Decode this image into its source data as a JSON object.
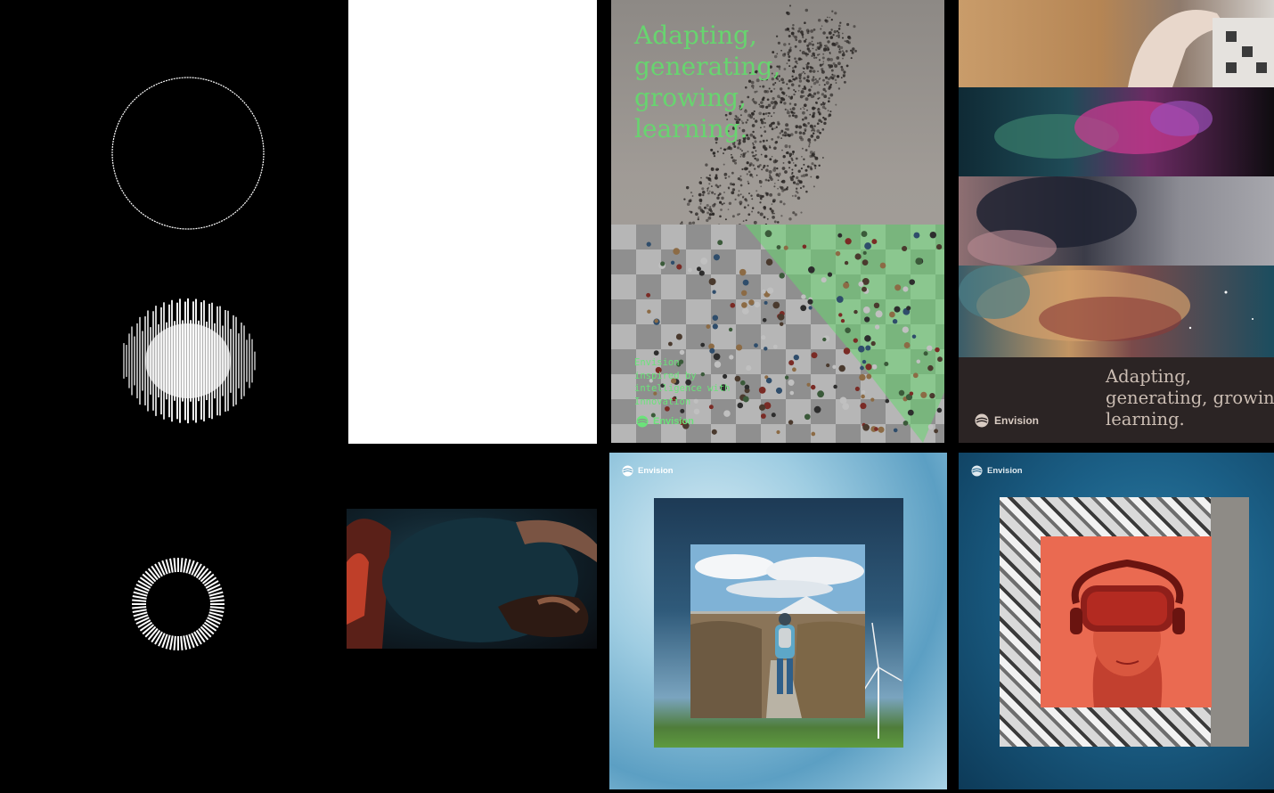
{
  "brand": {
    "name": "Envision"
  },
  "poster": {
    "headline_lines": [
      "Adapting,",
      "generating,",
      "growing,",
      "learning."
    ],
    "small_lines": [
      "Envision",
      "inspired by",
      "intelligence with",
      "Innovation"
    ],
    "logo_label": "Envision",
    "accent_color": "#67d56f"
  },
  "collage": {
    "headline_lines": [
      "Adapting,",
      "generating, growing",
      "learning."
    ],
    "logo_label": "Envision"
  },
  "ice_frame": {
    "logo_label": "Envision"
  },
  "ocean_frame": {
    "logo_label": "Envision"
  },
  "icons": [
    "envision-logo-icon",
    "circle-outline-icon",
    "pixel-circle-icon",
    "radial-ring-icon"
  ]
}
